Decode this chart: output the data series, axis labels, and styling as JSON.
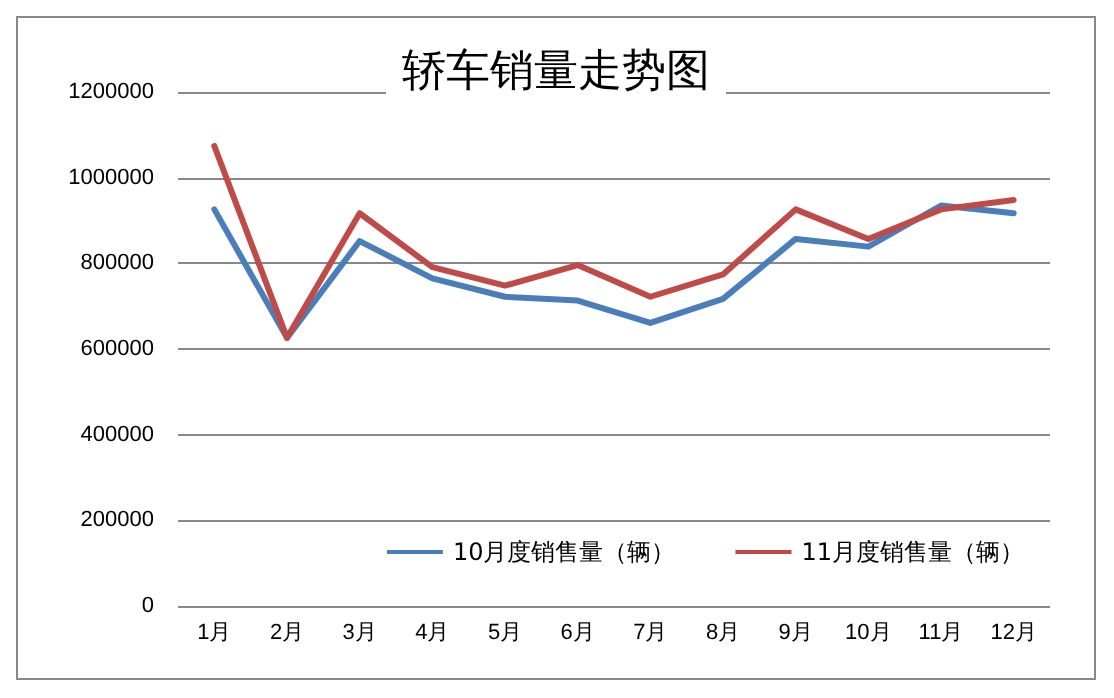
{
  "chart_data": {
    "type": "line",
    "title": "轿车销量走势图",
    "categories": [
      "1月",
      "2月",
      "3月",
      "4月",
      "5月",
      "6月",
      "7月",
      "8月",
      "9月",
      "10月",
      "11月",
      "12月"
    ],
    "series": [
      {
        "name": "10月度销售量（辆）",
        "color": "#4a7ebb",
        "values": [
          926000,
          626000,
          852000,
          765000,
          722000,
          713000,
          661000,
          717000,
          857000,
          839000,
          935000,
          917000
        ]
      },
      {
        "name": "11月度销售量（辆）",
        "color": "#be4b48",
        "values": [
          1074000,
          626000,
          917000,
          791000,
          748000,
          796000,
          722000,
          774000,
          926000,
          857000,
          926000,
          948000
        ]
      }
    ],
    "ylim": [
      0,
      1200000
    ],
    "yticks": [
      0,
      200000,
      400000,
      600000,
      800000,
      1000000,
      1200000
    ],
    "grid": "y",
    "legend": "bottom right",
    "marker": "none",
    "line_style": "solid"
  }
}
